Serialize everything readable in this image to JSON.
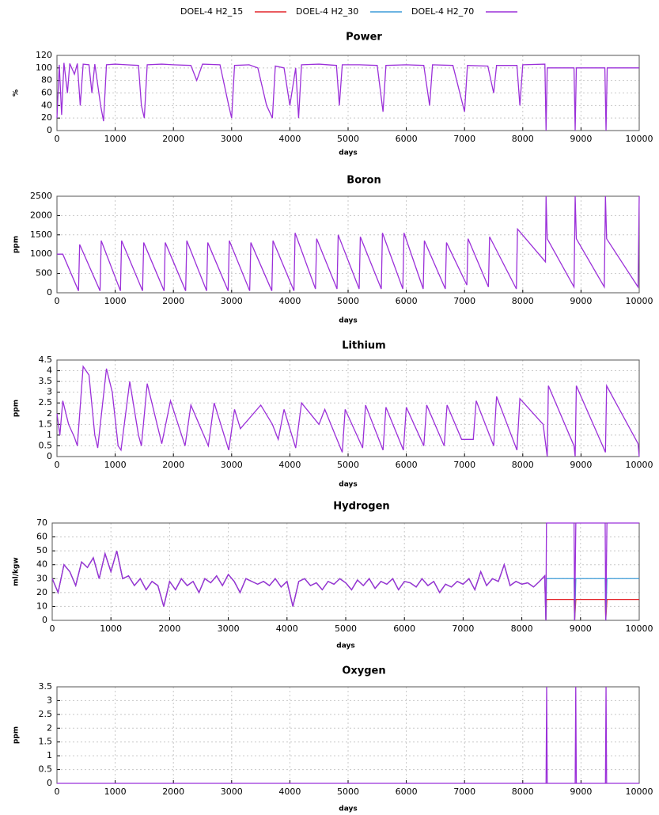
{
  "chart_data": [
    {
      "type": "line",
      "title": "Power",
      "x_label": "days",
      "y_label": "%",
      "color": "#9b30d9",
      "grid": true,
      "xlim": [
        0,
        10000
      ],
      "xticks": [
        0,
        1000,
        2000,
        3000,
        4000,
        5000,
        6000,
        7000,
        8000,
        9000,
        10000
      ],
      "ylim": [
        0,
        120
      ],
      "yticks": [
        0,
        20,
        40,
        60,
        80,
        100,
        120
      ],
      "x": [
        0,
        40,
        80,
        120,
        180,
        220,
        300,
        350,
        400,
        450,
        550,
        600,
        650,
        750,
        800,
        850,
        1000,
        1200,
        1400,
        1450,
        1500,
        1550,
        1800,
        2000,
        2300,
        2400,
        2500,
        2800,
        2950,
        3000,
        3050,
        3300,
        3450,
        3600,
        3700,
        3750,
        3900,
        4000,
        4100,
        4150,
        4200,
        4500,
        4800,
        4850,
        4900,
        5200,
        5500,
        5600,
        5650,
        6000,
        6300,
        6400,
        6450,
        6800,
        7000,
        7050,
        7400,
        7500,
        7550,
        7900,
        7950,
        8000,
        8380,
        8400,
        8420,
        8880,
        8900,
        8920,
        9410,
        9430,
        9450,
        10000
      ],
      "values": [
        20,
        105,
        25,
        108,
        60,
        107,
        90,
        107,
        40,
        106,
        105,
        60,
        106,
        40,
        15,
        105,
        106,
        105,
        104,
        40,
        20,
        105,
        106,
        105,
        104,
        80,
        106,
        105,
        40,
        20,
        104,
        105,
        100,
        40,
        20,
        103,
        100,
        40,
        100,
        20,
        105,
        106,
        104,
        40,
        105,
        105,
        104,
        30,
        104,
        105,
        104,
        40,
        105,
        104,
        30,
        104,
        103,
        60,
        104,
        104,
        40,
        105,
        106,
        0,
        100,
        100,
        0,
        100,
        100,
        0,
        100,
        100
      ]
    },
    {
      "type": "line",
      "title": "Boron",
      "x_label": "days",
      "y_label": "ppm",
      "color": "#9b30d9",
      "grid": true,
      "xlim": [
        0,
        10000
      ],
      "xticks": [
        0,
        1000,
        2000,
        3000,
        4000,
        5000,
        6000,
        7000,
        8000,
        9000,
        10000
      ],
      "ylim": [
        0,
        2500
      ],
      "yticks": [
        0,
        500,
        1000,
        1500,
        2000,
        2500
      ],
      "x": [
        0,
        100,
        370,
        390,
        740,
        760,
        1090,
        1110,
        1470,
        1490,
        1840,
        1860,
        2210,
        2230,
        2570,
        2590,
        2940,
        2960,
        3310,
        3330,
        3690,
        3710,
        4070,
        4090,
        4440,
        4460,
        4810,
        4830,
        5190,
        5210,
        5570,
        5590,
        5940,
        5960,
        6290,
        6310,
        6670,
        6690,
        7040,
        7060,
        7410,
        7430,
        7890,
        7910,
        8390,
        8400,
        8420,
        8880,
        8900,
        8920,
        9400,
        9420,
        9440,
        9980,
        10000
      ],
      "values": [
        1000,
        1000,
        50,
        1250,
        50,
        1350,
        50,
        1350,
        50,
        1300,
        50,
        1300,
        50,
        1350,
        50,
        1300,
        50,
        1350,
        50,
        1300,
        50,
        1350,
        50,
        1550,
        100,
        1400,
        100,
        1500,
        100,
        1450,
        100,
        1550,
        100,
        1550,
        100,
        1350,
        100,
        1300,
        200,
        1400,
        150,
        1450,
        100,
        1650,
        800,
        2500,
        1400,
        150,
        2500,
        1400,
        150,
        2500,
        1400,
        150,
        2500
      ]
    },
    {
      "type": "line",
      "title": "Lithium",
      "x_label": "days",
      "y_label": "ppm",
      "color": "#9b30d9",
      "grid": true,
      "xlim": [
        0,
        10000
      ],
      "xticks": [
        0,
        1000,
        2000,
        3000,
        4000,
        5000,
        6000,
        7000,
        8000,
        9000,
        10000
      ],
      "ylim": [
        0,
        4.5
      ],
      "yticks": [
        0,
        0.5,
        1,
        1.5,
        2,
        2.5,
        3,
        3.5,
        4,
        4.5
      ],
      "x": [
        0,
        50,
        100,
        200,
        300,
        350,
        450,
        550,
        650,
        700,
        850,
        950,
        1050,
        1100,
        1250,
        1400,
        1450,
        1550,
        1800,
        1950,
        2200,
        2300,
        2600,
        2700,
        2950,
        3050,
        3150,
        3500,
        3700,
        3800,
        3900,
        4100,
        4200,
        4500,
        4600,
        4900,
        4950,
        5250,
        5300,
        5600,
        5650,
        5950,
        6000,
        6300,
        6350,
        6650,
        6700,
        6950,
        7150,
        7200,
        7500,
        7550,
        7900,
        7950,
        8350,
        8420,
        8440,
        8880,
        8900,
        8920,
        9420,
        9440,
        9980,
        10000
      ],
      "values": [
        2,
        1,
        2.6,
        1.5,
        0.9,
        0.5,
        4.2,
        3.8,
        1,
        0.4,
        4.1,
        3,
        0.5,
        0.3,
        3.5,
        1,
        0.5,
        3.4,
        0.6,
        2.6,
        0.5,
        2.4,
        0.5,
        2.5,
        0.3,
        2.2,
        1.3,
        2.4,
        1.5,
        0.8,
        2.2,
        0.4,
        2.5,
        1.5,
        2.2,
        0.2,
        2.2,
        0.4,
        2.4,
        0.3,
        2.3,
        0.3,
        2.3,
        0.5,
        2.4,
        0.5,
        2.4,
        0.8,
        0.8,
        2.6,
        0.5,
        2.8,
        0.3,
        2.7,
        1.5,
        0,
        3.3,
        0.5,
        0,
        3.3,
        0.2,
        3.3,
        0.6,
        0
      ]
    },
    {
      "type": "line",
      "title": "Hydrogen",
      "x_label": "days",
      "y_label": "ml/kgw",
      "grid": true,
      "xlim": [
        0,
        10000
      ],
      "xticks": [
        0,
        1000,
        2000,
        3000,
        4000,
        5000,
        6000,
        7000,
        8000,
        9000,
        10000
      ],
      "ylim": [
        0,
        70
      ],
      "yticks": [
        0,
        10,
        20,
        30,
        40,
        50,
        60,
        70
      ],
      "x": [
        0,
        100,
        200,
        300,
        400,
        500,
        600,
        700,
        800,
        900,
        1000,
        1100,
        1200,
        1300,
        1400,
        1500,
        1600,
        1700,
        1800,
        1900,
        2000,
        2100,
        2200,
        2300,
        2400,
        2500,
        2600,
        2700,
        2800,
        2900,
        3000,
        3100,
        3200,
        3300,
        3400,
        3500,
        3600,
        3700,
        3800,
        3900,
        4000,
        4100,
        4200,
        4300,
        4400,
        4500,
        4600,
        4700,
        4800,
        4900,
        5000,
        5100,
        5200,
        5300,
        5400,
        5500,
        5600,
        5700,
        5800,
        5900,
        6000,
        6100,
        6200,
        6300,
        6400,
        6500,
        6600,
        6700,
        6800,
        6900,
        7000,
        7100,
        7200,
        7300,
        7400,
        7500,
        7600,
        7700,
        7800,
        7900,
        8000,
        8100,
        8200,
        8300,
        8390,
        8410,
        8420,
        8890,
        8900,
        8920,
        9420,
        9430,
        9450,
        10000
      ],
      "series": [
        {
          "name": "DOEL-4 H2_15",
          "color": "#e4262b",
          "values": [
            30,
            20,
            40,
            35,
            25,
            42,
            38,
            45,
            30,
            48,
            35,
            50,
            30,
            32,
            25,
            30,
            22,
            28,
            25,
            10,
            28,
            22,
            30,
            25,
            28,
            20,
            30,
            27,
            32,
            25,
            33,
            28,
            20,
            30,
            28,
            26,
            28,
            25,
            30,
            24,
            28,
            10,
            28,
            30,
            25,
            27,
            22,
            28,
            26,
            30,
            27,
            22,
            29,
            25,
            30,
            23,
            28,
            26,
            30,
            22,
            28,
            27,
            24,
            30,
            25,
            28,
            20,
            26,
            24,
            28,
            26,
            30,
            22,
            35,
            25,
            30,
            28,
            40,
            25,
            28,
            26,
            27,
            24,
            28,
            32,
            0,
            15,
            15,
            0,
            15,
            15,
            0,
            15,
            15
          ]
        },
        {
          "name": "DOEL-4 H2_30",
          "color": "#3b9bd8",
          "values": [
            30,
            20,
            40,
            35,
            25,
            42,
            38,
            45,
            30,
            48,
            35,
            50,
            30,
            32,
            25,
            30,
            22,
            28,
            25,
            10,
            28,
            22,
            30,
            25,
            28,
            20,
            30,
            27,
            32,
            25,
            33,
            28,
            20,
            30,
            28,
            26,
            28,
            25,
            30,
            24,
            28,
            10,
            28,
            30,
            25,
            27,
            22,
            28,
            26,
            30,
            27,
            22,
            29,
            25,
            30,
            23,
            28,
            26,
            30,
            22,
            28,
            27,
            24,
            30,
            25,
            28,
            20,
            26,
            24,
            28,
            26,
            30,
            22,
            35,
            25,
            30,
            28,
            40,
            25,
            28,
            26,
            27,
            24,
            28,
            32,
            0,
            30,
            30,
            0,
            30,
            30,
            0,
            30,
            30
          ]
        },
        {
          "name": "DOEL-4 H2_70",
          "color": "#9b30d9",
          "values": [
            30,
            20,
            40,
            35,
            25,
            42,
            38,
            45,
            30,
            48,
            35,
            50,
            30,
            32,
            25,
            30,
            22,
            28,
            25,
            10,
            28,
            22,
            30,
            25,
            28,
            20,
            30,
            27,
            32,
            25,
            33,
            28,
            20,
            30,
            28,
            26,
            28,
            25,
            30,
            24,
            28,
            10,
            28,
            30,
            25,
            27,
            22,
            28,
            26,
            30,
            27,
            22,
            29,
            25,
            30,
            23,
            28,
            26,
            30,
            22,
            28,
            27,
            24,
            30,
            25,
            28,
            20,
            26,
            24,
            28,
            26,
            30,
            22,
            35,
            25,
            30,
            28,
            40,
            25,
            28,
            26,
            27,
            24,
            28,
            32,
            0,
            70,
            70,
            0,
            70,
            70,
            0,
            70,
            70
          ]
        }
      ]
    },
    {
      "type": "line",
      "title": "Oxygen",
      "x_label": "days",
      "y_label": "ppm",
      "color": "#9b30d9",
      "grid": true,
      "xlim": [
        0,
        10000
      ],
      "xticks": [
        0,
        1000,
        2000,
        3000,
        4000,
        5000,
        6000,
        7000,
        8000,
        9000,
        10000
      ],
      "ylim": [
        0,
        3.5
      ],
      "yticks": [
        0,
        0.5,
        1,
        1.5,
        2,
        2.5,
        3,
        3.5
      ],
      "x": [
        0,
        8400,
        8410,
        8420,
        8900,
        8910,
        8920,
        9420,
        9430,
        9440,
        10000
      ],
      "values": [
        0,
        0,
        3.5,
        0,
        0,
        3.5,
        0,
        0,
        3.5,
        0,
        0
      ]
    }
  ]
}
